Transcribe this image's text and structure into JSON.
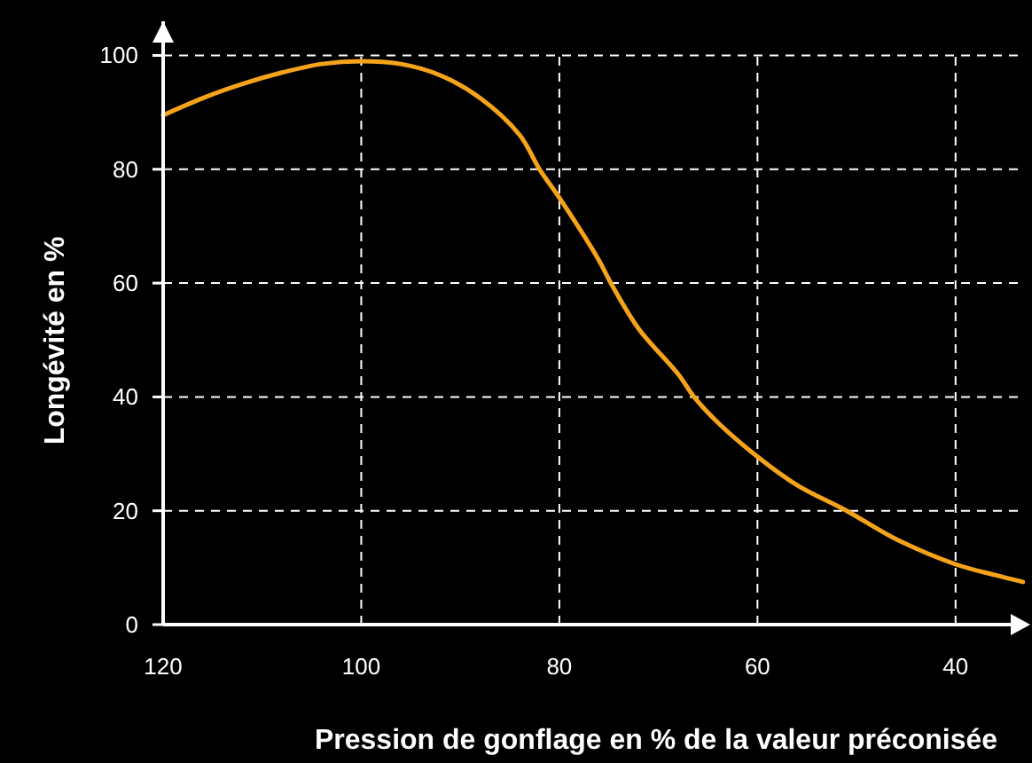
{
  "chart_data": {
    "type": "line",
    "xlabel": "Pression de gonflage en % de la valeur préconisée",
    "ylabel": "Longévité en %",
    "x": [
      120,
      116,
      112,
      108,
      104,
      100,
      96,
      92,
      88,
      84,
      82,
      80,
      76,
      74.8,
      72,
      68,
      66.4,
      64,
      60,
      56,
      51,
      46,
      40,
      36,
      33.2
    ],
    "series": [
      {
        "color": "#f5a31a",
        "values": [
          89.5,
          92.5,
          95,
          97,
          98.5,
          99,
          98.5,
          96.5,
          92.5,
          86,
          80,
          75,
          64,
          60,
          52,
          44,
          40,
          35.5,
          29.5,
          24.5,
          20,
          15,
          10.6,
          8.7,
          7.5
        ]
      }
    ],
    "xlim": [
      120,
      33
    ],
    "ylim": [
      0,
      106
    ],
    "xticks": [
      120,
      100,
      80,
      60,
      40
    ],
    "yticks": [
      0,
      20,
      40,
      60,
      80,
      100
    ],
    "grid": true,
    "line_style": "solid",
    "marker": "none"
  }
}
